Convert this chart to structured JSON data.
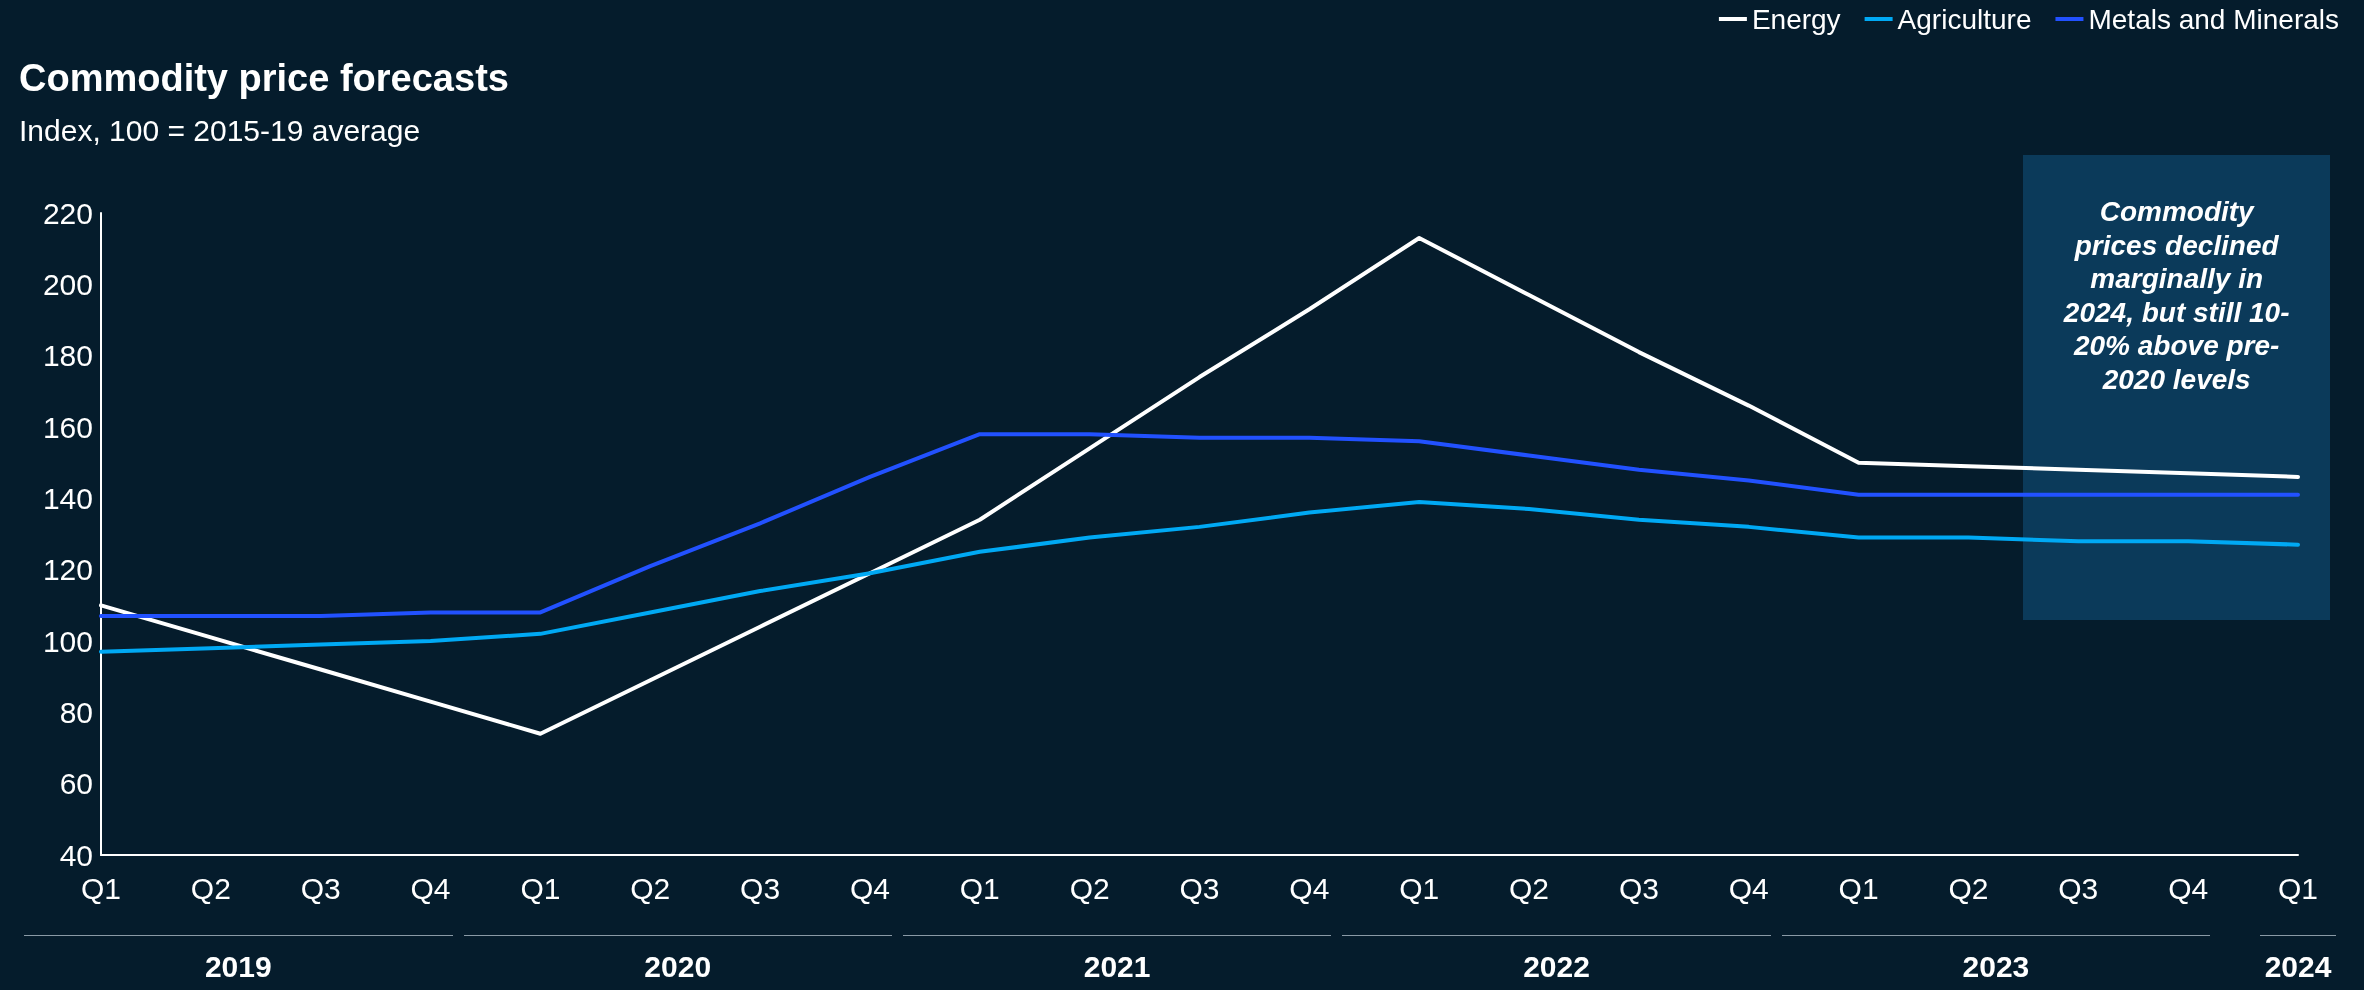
{
  "chart_data": {
    "type": "line",
    "title": "Commodity price forecasts",
    "subtitle": "Index, 100 = 2015-19 average",
    "categories": [
      "Q1",
      "Q2",
      "Q3",
      "Q4",
      "Q1",
      "Q2",
      "Q3",
      "Q4",
      "Q1",
      "Q2",
      "Q3",
      "Q4",
      "Q1",
      "Q2",
      "Q3",
      "Q4",
      "Q1",
      "Q2",
      "Q3",
      "Q4",
      "Q1"
    ],
    "series": [
      {
        "name": "Energy",
        "color": "#ffffff",
        "values": [
          110,
          101,
          92,
          83,
          74,
          89,
          104,
          119,
          134,
          154,
          174,
          193,
          213,
          197,
          181,
          166,
          150,
          149,
          148,
          147,
          146
        ]
      },
      {
        "name": "Agriculture",
        "color": "#00a9f4",
        "values": [
          97,
          98,
          99,
          100,
          102,
          108,
          114,
          119,
          125,
          129,
          132,
          136,
          139,
          137,
          134,
          132,
          129,
          129,
          128,
          128,
          127
        ]
      },
      {
        "name": "Metals and Minerals",
        "color": "#2251ff",
        "values": [
          107,
          107,
          107,
          108,
          108,
          121,
          133,
          146,
          158,
          158,
          157,
          157,
          156,
          152,
          148,
          145,
          141,
          141,
          141,
          141,
          141
        ]
      }
    ],
    "ylim": [
      40,
      220
    ],
    "yticks": [
      40,
      60,
      80,
      100,
      120,
      140,
      160,
      180,
      200,
      220
    ],
    "annotations": [
      "2019",
      "2020",
      "2021",
      "2022",
      "2023",
      "2024",
      "Commodity prices declined marginally in 2024, but still 10-20% above pre-2020 levels"
    ],
    "legend": "top right",
    "marker": "none",
    "line_style": "solid"
  }
}
